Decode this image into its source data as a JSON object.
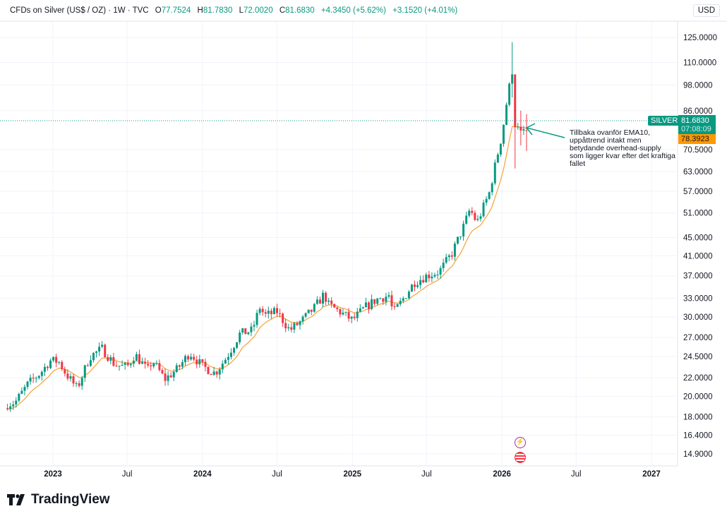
{
  "header": {
    "symbol": "CFDs on Silver (US$ / OZ) · 1W · TVC",
    "open_label": "O",
    "open": "77.7524",
    "high_label": "H",
    "high": "81.7830",
    "low_label": "L",
    "low": "72.0020",
    "close_label": "C",
    "close": "81.6830",
    "change": "+4.3450 (+5.62%)",
    "change2": "+3.1520 (+4.01%)"
  },
  "currency_button": "USD",
  "price_tag": {
    "label": "SILVER",
    "price": "81.6830",
    "countdown": "07:08:09",
    "ema": "78.3923"
  },
  "annotation": "Tillbaka ovanför EMA10, uppåttrend intakt men betydande overhead-supply som ligger kvar efter det kraftiga fallet",
  "brand": "TradingView",
  "colors": {
    "up": "#089981",
    "down": "#f23645",
    "ema": "#f7a136",
    "grid": "#f0f3fa",
    "ema_tag": "#ff9800"
  },
  "chart_data": {
    "type": "candlestick",
    "scale": "log",
    "y_ticks": [
      "125.0000",
      "110.0000",
      "98.0000",
      "86.0000",
      "70.5000",
      "63.0000",
      "57.0000",
      "51.0000",
      "45.0000",
      "41.0000",
      "37.0000",
      "33.0000",
      "30.0000",
      "27.0000",
      "24.5000",
      "22.0000",
      "20.0000",
      "18.0000",
      "16.4000",
      "14.9000"
    ],
    "x_ticks": [
      {
        "label": "2023",
        "date": "2023-01-01",
        "bold": true
      },
      {
        "label": "Jul",
        "date": "2023-07-01",
        "bold": false
      },
      {
        "label": "2024",
        "date": "2024-01-01",
        "bold": true
      },
      {
        "label": "Jul",
        "date": "2024-07-01",
        "bold": false
      },
      {
        "label": "2025",
        "date": "2025-01-01",
        "bold": true
      },
      {
        "label": "Jul",
        "date": "2025-07-01",
        "bold": false
      },
      {
        "label": "2026",
        "date": "2026-01-01",
        "bold": true
      },
      {
        "label": "Jul",
        "date": "2026-07-01",
        "bold": false
      },
      {
        "label": "2027",
        "date": "2027-01-01",
        "bold": true
      }
    ],
    "ema_period": 10,
    "last_price": 81.683,
    "close_anchors": [
      [
        "2022-09-12",
        19.2
      ],
      [
        "2022-10-01",
        19.4
      ],
      [
        "2022-11-01",
        21.3
      ],
      [
        "2022-12-01",
        22.5
      ],
      [
        "2022-12-25",
        24.0
      ],
      [
        "2023-01-15",
        23.9
      ],
      [
        "2023-02-01",
        22.5
      ],
      [
        "2023-03-01",
        20.8
      ],
      [
        "2023-04-01",
        24.5
      ],
      [
        "2023-05-01",
        25.5
      ],
      [
        "2023-06-01",
        23.5
      ],
      [
        "2023-07-01",
        23.2
      ],
      [
        "2023-07-20",
        24.8
      ],
      [
        "2023-08-01",
        24.0
      ],
      [
        "2023-08-20",
        22.8
      ],
      [
        "2023-09-01",
        24.0
      ],
      [
        "2023-10-01",
        21.8
      ],
      [
        "2023-11-01",
        23.0
      ],
      [
        "2023-12-01",
        25.0
      ],
      [
        "2024-01-01",
        23.3
      ],
      [
        "2024-02-01",
        22.5
      ],
      [
        "2024-03-01",
        24.5
      ],
      [
        "2024-04-01",
        27.5
      ],
      [
        "2024-05-01",
        28.0
      ],
      [
        "2024-05-20",
        31.5
      ],
      [
        "2024-06-01",
        30.2
      ],
      [
        "2024-07-01",
        30.8
      ],
      [
        "2024-08-01",
        28.0
      ],
      [
        "2024-09-01",
        29.5
      ],
      [
        "2024-10-01",
        31.5
      ],
      [
        "2024-10-25",
        33.8
      ],
      [
        "2024-11-01",
        32.0
      ],
      [
        "2024-12-01",
        30.8
      ],
      [
        "2025-01-01",
        29.5
      ],
      [
        "2025-02-01",
        31.5
      ],
      [
        "2025-03-01",
        32.8
      ],
      [
        "2025-04-01",
        33.5
      ],
      [
        "2025-04-10",
        30.5
      ],
      [
        "2025-05-01",
        32.5
      ],
      [
        "2025-06-01",
        35.8
      ],
      [
        "2025-07-01",
        37.0
      ],
      [
        "2025-08-01",
        37.8
      ],
      [
        "2025-09-01",
        41.5
      ],
      [
        "2025-10-01",
        48.0
      ],
      [
        "2025-10-15",
        52.0
      ],
      [
        "2025-11-01",
        48.5
      ],
      [
        "2025-12-01",
        56.5
      ],
      [
        "2025-12-20",
        68.0
      ],
      [
        "2026-01-01",
        76.0
      ],
      [
        "2026-01-15",
        93.0
      ],
      [
        "2026-01-25",
        103.5,
        122.0,
        92.0
      ],
      [
        "2026-02-01",
        79.0,
        92.0,
        64.0
      ],
      [
        "2026-02-15",
        77.7,
        86.0,
        72.0
      ],
      [
        "2026-03-01",
        77.75,
        84.5,
        70.0
      ],
      [
        "2026-03-08",
        81.683,
        81.783,
        72.002
      ]
    ]
  }
}
